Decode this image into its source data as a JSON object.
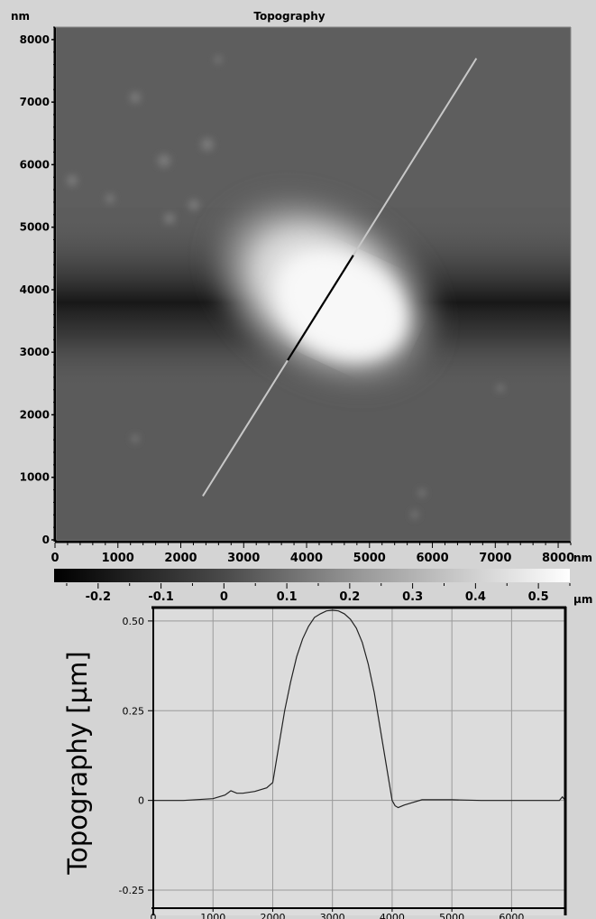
{
  "chart_data": [
    {
      "type": "heatmap",
      "title": "Topography",
      "y_unit_label": "nm",
      "x_unit_label": "nm",
      "xlim": [
        0,
        8200
      ],
      "ylim": [
        0,
        8200
      ],
      "x_ticks": [
        "0",
        "1000",
        "2000",
        "3000",
        "4000",
        "5000",
        "6000",
        "7000",
        "8000"
      ],
      "y_ticks": [
        "0",
        "1000",
        "2000",
        "3000",
        "4000",
        "5000",
        "6000",
        "7000",
        "8000"
      ],
      "features": {
        "bump_center": [
          4300,
          3650
        ],
        "bump_peak_height_um": 0.53,
        "background_level_um": 0.0,
        "dark_band_center_y": 3800,
        "dark_band_level_um": -0.22
      },
      "line_profile_path": {
        "start": [
          2350,
          700
        ],
        "end": [
          6700,
          7700
        ]
      },
      "colorbar": {
        "range": [
          -0.27,
          0.55
        ],
        "ticks": [
          "-0.2",
          "-0.1",
          "0",
          "0.1",
          "0.2",
          "0.3",
          "0.4",
          "0.5"
        ],
        "unit_label": "µm"
      },
      "grid": false,
      "colormap": "grayscale"
    },
    {
      "type": "line",
      "ylabel": "Topography [µm]",
      "xlim": [
        0,
        6900
      ],
      "ylim": [
        -0.27,
        0.55
      ],
      "x_ticks": [
        "0",
        "1000",
        "2000",
        "3000",
        "4000",
        "5000",
        "6000"
      ],
      "y_ticks": [
        "0.50",
        "0.25",
        "0",
        "-0.25"
      ],
      "grid": true,
      "series": [
        {
          "x": [
            0,
            500,
            1000,
            1200,
            1300,
            1400,
            1500,
            1700,
            1900,
            2000,
            2050,
            2100,
            2200,
            2300,
            2400,
            2500,
            2600,
            2700,
            2800,
            2900,
            3000,
            3100,
            3200,
            3300,
            3400,
            3500,
            3600,
            3700,
            3800,
            3900,
            3950,
            4000,
            4050,
            4100,
            4200,
            4300,
            4500,
            5000,
            5500,
            6000,
            6500,
            6800,
            6850,
            6900
          ],
          "y": [
            0.0,
            0.0,
            0.005,
            0.015,
            0.027,
            0.02,
            0.02,
            0.025,
            0.035,
            0.05,
            0.1,
            0.15,
            0.25,
            0.33,
            0.4,
            0.45,
            0.485,
            0.51,
            0.52,
            0.528,
            0.53,
            0.528,
            0.52,
            0.505,
            0.48,
            0.44,
            0.38,
            0.3,
            0.2,
            0.1,
            0.05,
            0.0,
            -0.015,
            -0.02,
            -0.013,
            -0.008,
            0.002,
            0.002,
            0.0,
            0.0,
            0.0,
            0.0,
            0.01,
            0.0
          ]
        }
      ]
    }
  ]
}
